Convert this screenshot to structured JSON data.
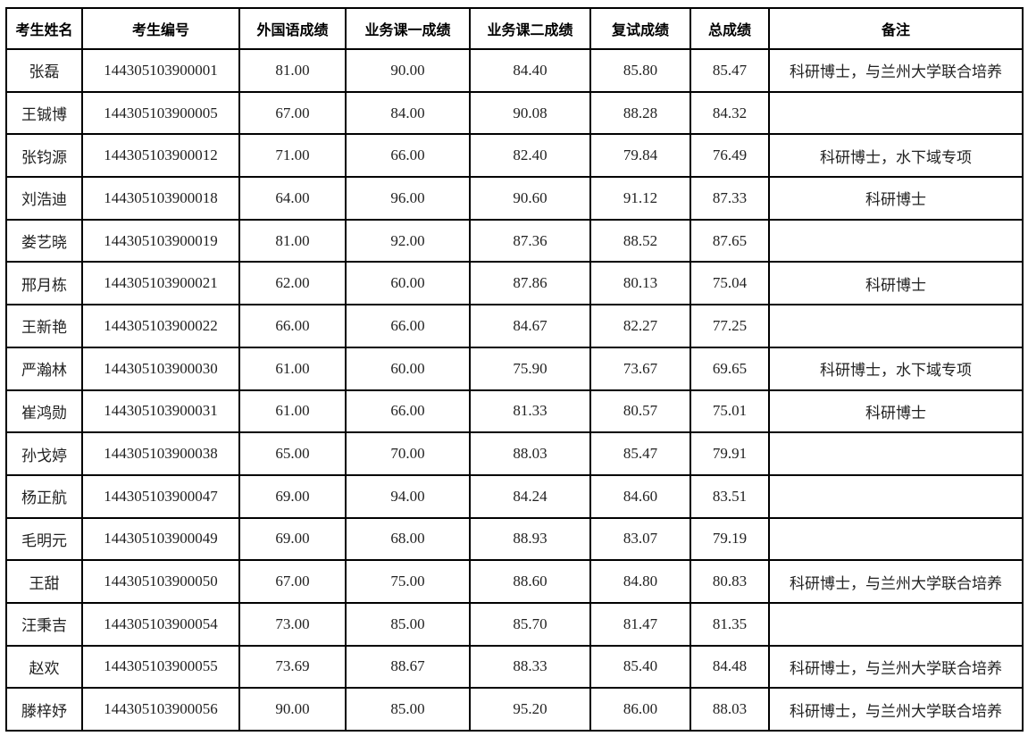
{
  "table": {
    "headers": [
      "考生姓名",
      "考生编号",
      "外国语成绩",
      "业务课一成绩",
      "业务课二成绩",
      "复试成绩",
      "总成绩",
      "备注"
    ],
    "rows": [
      [
        "张磊",
        "144305103900001",
        "81.00",
        "90.00",
        "84.40",
        "85.80",
        "85.47",
        "科研博士，与兰州大学联合培养"
      ],
      [
        "王铖博",
        "144305103900005",
        "67.00",
        "84.00",
        "90.08",
        "88.28",
        "84.32",
        ""
      ],
      [
        "张钧源",
        "144305103900012",
        "71.00",
        "66.00",
        "82.40",
        "79.84",
        "76.49",
        "科研博士，水下域专项"
      ],
      [
        "刘浩迪",
        "144305103900018",
        "64.00",
        "96.00",
        "90.60",
        "91.12",
        "87.33",
        "科研博士"
      ],
      [
        "娄艺晓",
        "144305103900019",
        "81.00",
        "92.00",
        "87.36",
        "88.52",
        "87.65",
        ""
      ],
      [
        "邢月栋",
        "144305103900021",
        "62.00",
        "60.00",
        "87.86",
        "80.13",
        "75.04",
        "科研博士"
      ],
      [
        "王新艳",
        "144305103900022",
        "66.00",
        "66.00",
        "84.67",
        "82.27",
        "77.25",
        ""
      ],
      [
        "严瀚林",
        "144305103900030",
        "61.00",
        "60.00",
        "75.90",
        "73.67",
        "69.65",
        "科研博士，水下域专项"
      ],
      [
        "崔鸿勋",
        "144305103900031",
        "61.00",
        "66.00",
        "81.33",
        "80.57",
        "75.01",
        "科研博士"
      ],
      [
        "孙戈婷",
        "144305103900038",
        "65.00",
        "70.00",
        "88.03",
        "85.47",
        "79.91",
        ""
      ],
      [
        "杨正航",
        "144305103900047",
        "69.00",
        "94.00",
        "84.24",
        "84.60",
        "83.51",
        ""
      ],
      [
        "毛明元",
        "144305103900049",
        "69.00",
        "68.00",
        "88.93",
        "83.07",
        "79.19",
        ""
      ],
      [
        "王甜",
        "144305103900050",
        "67.00",
        "75.00",
        "88.60",
        "84.80",
        "80.83",
        "科研博士，与兰州大学联合培养"
      ],
      [
        "汪秉吉",
        "144305103900054",
        "73.00",
        "85.00",
        "85.70",
        "81.47",
        "81.35",
        ""
      ],
      [
        "赵欢",
        "144305103900055",
        "73.69",
        "88.67",
        "88.33",
        "85.40",
        "84.48",
        "科研博士，与兰州大学联合培养"
      ],
      [
        "滕梓妤",
        "144305103900056",
        "90.00",
        "85.00",
        "95.20",
        "86.00",
        "88.03",
        "科研博士，与兰州大学联合培养"
      ]
    ]
  }
}
